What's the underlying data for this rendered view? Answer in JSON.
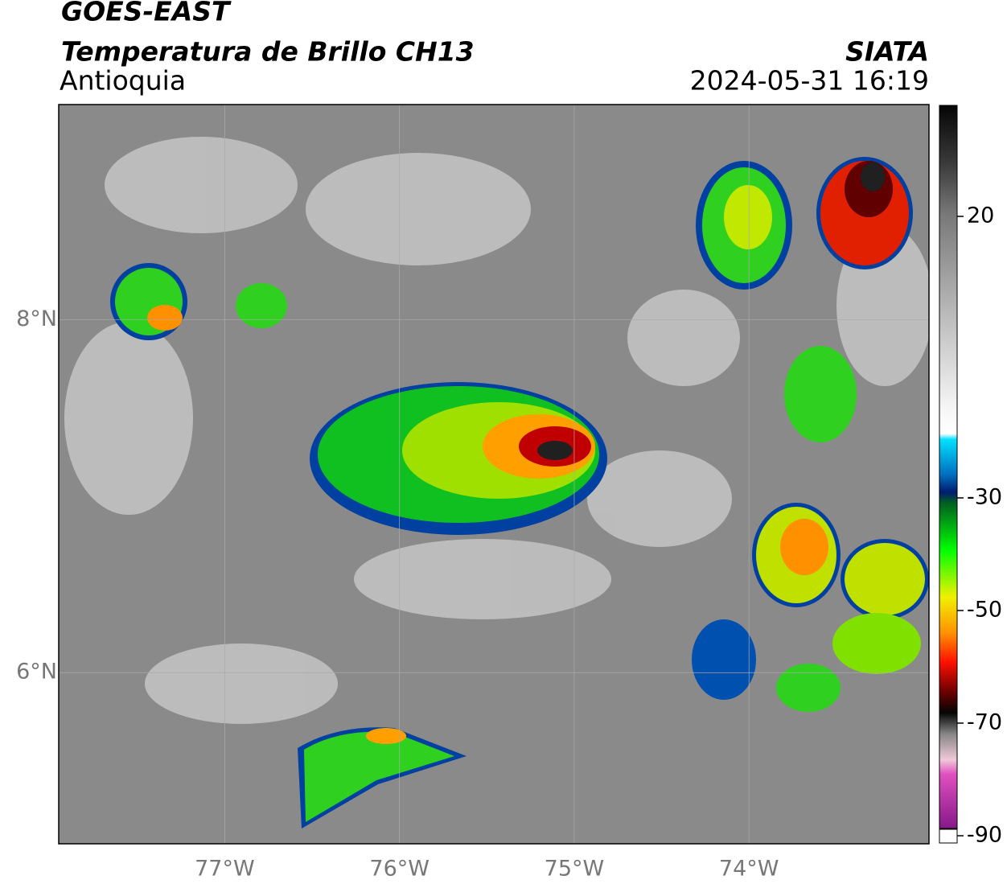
{
  "header": {
    "title": "GOES-EAST",
    "subtitle": "Temperatura de Brillo CH13",
    "region": "Antioquia",
    "source": "SIATA",
    "datetime": "2024-05-31 16:19"
  },
  "map": {
    "xlim": [
      -77.95,
      -72.97
    ],
    "ylim": [
      5.03,
      9.22
    ],
    "xticks": [
      {
        "value": -77,
        "label": "77°W"
      },
      {
        "value": -76,
        "label": "76°W"
      },
      {
        "value": -75,
        "label": "75°W"
      },
      {
        "value": -74,
        "label": "74°W"
      }
    ],
    "yticks": [
      {
        "value": 6,
        "label": "6°N"
      },
      {
        "value": 8,
        "label": "8°N"
      }
    ],
    "grid": true
  },
  "colorbar": {
    "clim": [
      -90,
      40
    ],
    "ticks": [
      20,
      -30,
      -50,
      -70,
      -90
    ]
  }
}
